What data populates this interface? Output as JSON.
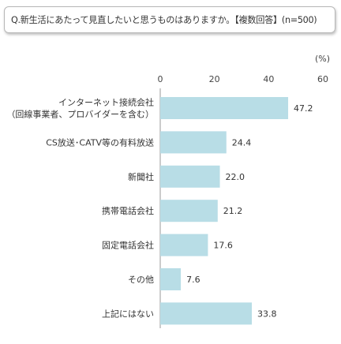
{
  "question": {
    "text": "Q.新生活にあたって見直したいと思うものはありますか。【複数回答】(n=500)"
  },
  "chart_data": {
    "type": "bar",
    "orientation": "horizontal",
    "unit_label": "(%)",
    "xlim": [
      0,
      60
    ],
    "ticks": [
      "0",
      "20",
      "40",
      "60"
    ],
    "categories": [
      [
        "インターネット接続会社",
        "（回線事業者、プロバイダーを含む）"
      ],
      [
        "CS放送･CATV等の有料放送"
      ],
      [
        "新聞社"
      ],
      [
        "携帯電話会社"
      ],
      [
        "固定電話会社"
      ],
      [
        "その他"
      ],
      [
        "上記にはない"
      ]
    ],
    "values": [
      47.2,
      24.4,
      22.0,
      21.2,
      17.6,
      7.6,
      33.8
    ],
    "value_labels": [
      "47.2",
      "24.4",
      "22.0",
      "21.2",
      "17.6",
      "7.6",
      "33.8"
    ],
    "bar_color": "#b8dde6",
    "axis_color": "#999999",
    "grid": false
  }
}
